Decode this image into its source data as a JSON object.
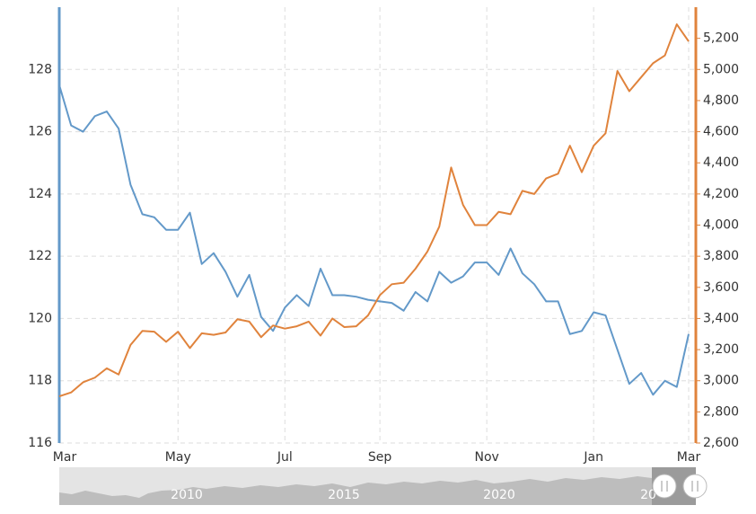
{
  "chart_data": {
    "type": "line",
    "categories": [
      "Mar",
      null,
      null,
      null,
      null,
      null,
      null,
      null,
      null,
      null,
      "May",
      null,
      null,
      null,
      null,
      null,
      null,
      null,
      null,
      "Jul",
      null,
      null,
      null,
      null,
      null,
      null,
      null,
      "Sep",
      null,
      null,
      null,
      null,
      null,
      null,
      null,
      null,
      "Nov",
      null,
      null,
      null,
      null,
      null,
      null,
      null,
      null,
      "Jan",
      null,
      null,
      null,
      null,
      null,
      null,
      null,
      "Mar"
    ],
    "series": [
      {
        "color": "#6399c9",
        "values": [
          127.5,
          126.2,
          126.0,
          126.5,
          126.65,
          126.1,
          124.3,
          123.35,
          123.25,
          122.85,
          122.85,
          123.4,
          121.75,
          122.1,
          121.5,
          120.7,
          121.4,
          120.05,
          119.6,
          120.35,
          120.75,
          120.4,
          121.6,
          120.75,
          120.75,
          120.7,
          120.6,
          120.55,
          120.5,
          120.25,
          120.85,
          120.55,
          121.5,
          121.15,
          121.35,
          121.8,
          121.8,
          121.4,
          122.25,
          121.45,
          121.1,
          120.55,
          120.55,
          119.5,
          119.6,
          120.2,
          120.1,
          119.0,
          117.9,
          118.25,
          117.55,
          118.0,
          117.8,
          119.5
        ]
      },
      {
        "color": "#e0833c",
        "axis": "y2",
        "values": [
          2900,
          2925,
          2990,
          3020,
          3080,
          3040,
          3230,
          3320,
          3315,
          3250,
          3315,
          3210,
          3305,
          3295,
          3310,
          3395,
          3380,
          3280,
          3355,
          3335,
          3350,
          3380,
          3290,
          3400,
          3345,
          3350,
          3420,
          3550,
          3620,
          3630,
          3720,
          3830,
          3990,
          4370,
          4130,
          4000,
          4000,
          4085,
          4070,
          4220,
          4200,
          4300,
          4330,
          4510,
          4340,
          4510,
          4590,
          4990,
          4860,
          4950,
          5040,
          5090,
          5290,
          5180
        ]
      }
    ],
    "ylim": [
      116,
      130
    ],
    "yticks": [
      116,
      118,
      120,
      122,
      124,
      126,
      128
    ],
    "y2lim": [
      2600,
      5400
    ],
    "y2ticks": [
      {
        "value": 2600,
        "label": "2,600"
      },
      {
        "value": 2800,
        "label": "2,800"
      },
      {
        "value": 3000,
        "label": "3,000"
      },
      {
        "value": 3200,
        "label": "3,200"
      },
      {
        "value": 3400,
        "label": "3,400"
      },
      {
        "value": 3600,
        "label": "3,600"
      },
      {
        "value": 3800,
        "label": "3,800"
      },
      {
        "value": 4000,
        "label": "4,000"
      },
      {
        "value": 4200,
        "label": "4,200"
      },
      {
        "value": 4400,
        "label": "4,400"
      },
      {
        "value": 4600,
        "label": "4,600"
      },
      {
        "value": 4800,
        "label": "4,800"
      },
      {
        "value": 5000,
        "label": "5,000"
      },
      {
        "value": 5200,
        "label": "5,200"
      }
    ],
    "grid": true
  },
  "navigator": {
    "labels": [
      "2010",
      "2015",
      "2020",
      "20"
    ]
  }
}
